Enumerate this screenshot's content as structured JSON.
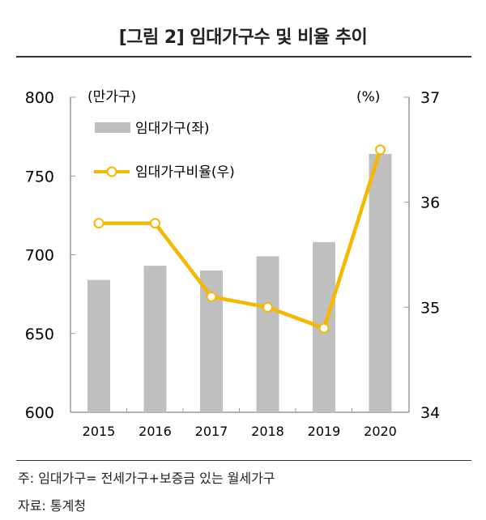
{
  "title": "[그림 2] 임대가구수 및 비율 추이",
  "notes": {
    "note": "주: 임대가구= 전세가구+보증금 있는 월세가구",
    "source": "자료: 통계청"
  },
  "chart_data": {
    "type": "bar+line",
    "categories": [
      "2015",
      "2016",
      "2017",
      "2018",
      "2019",
      "2020"
    ],
    "series": [
      {
        "name": "임대가구(좌)",
        "type": "bar",
        "axis": "left",
        "color": "#bfbfbf",
        "values": [
          684,
          693,
          690,
          699,
          708,
          764
        ]
      },
      {
        "name": "임대가구비율(우)",
        "type": "line",
        "axis": "right",
        "color": "#f5b800",
        "values": [
          35.8,
          35.8,
          35.1,
          35.0,
          34.8,
          36.5
        ]
      }
    ],
    "left_axis": {
      "unit": "(만가구)",
      "range": [
        600,
        800
      ],
      "ticks": [
        "600",
        "650",
        "700",
        "750",
        "800"
      ]
    },
    "right_axis": {
      "unit": "(%)",
      "range": [
        34,
        37
      ],
      "ticks": [
        "34",
        "35",
        "36",
        "37"
      ]
    },
    "legend_placement": "top-left",
    "grid": false
  }
}
